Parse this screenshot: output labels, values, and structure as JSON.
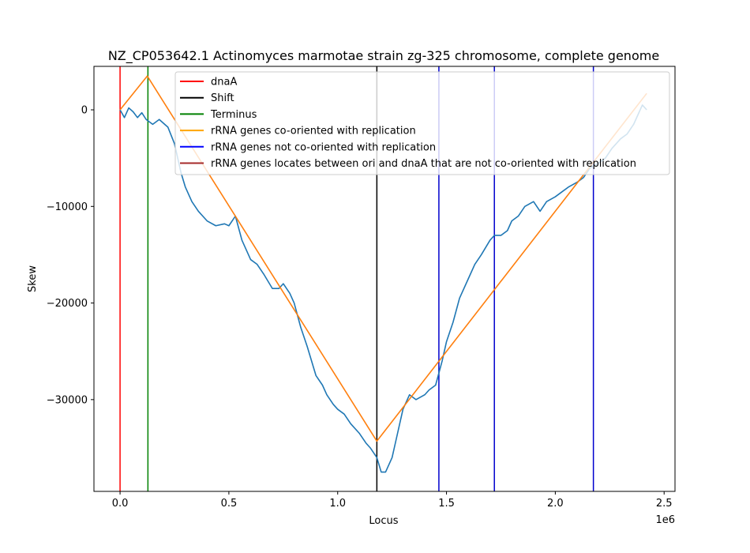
{
  "chart_data": {
    "type": "line",
    "title": "NZ_CP053642.1 Actinomyces marmotae strain zg-325 chromosome, complete genome",
    "xlabel": "Locus",
    "ylabel": "Skew",
    "x_offset_label": "1e6",
    "xlim": [
      -0.12,
      2.55
    ],
    "ylim": [
      -39500,
      4500
    ],
    "x_ticks": [
      {
        "value": 0.0,
        "label": "0.0"
      },
      {
        "value": 0.5,
        "label": "0.5"
      },
      {
        "value": 1.0,
        "label": "1.0"
      },
      {
        "value": 1.5,
        "label": "1.5"
      },
      {
        "value": 2.0,
        "label": "2.0"
      },
      {
        "value": 2.5,
        "label": "2.5"
      }
    ],
    "y_ticks": [
      {
        "value": 0,
        "label": "0"
      },
      {
        "value": -10000,
        "label": "−10000"
      },
      {
        "value": -20000,
        "label": "−20000"
      },
      {
        "value": -30000,
        "label": "−30000"
      }
    ],
    "grid": false,
    "legend_position": "top-right",
    "legend": [
      {
        "label": "dnaA",
        "color": "#ff0000"
      },
      {
        "label": "Shift",
        "color": "#000000"
      },
      {
        "label": "Terminus",
        "color": "#008000"
      },
      {
        "label": "rRNA genes co-oriented with replication",
        "color": "#ffa500"
      },
      {
        "label": "rRNA genes not co-oriented with replication",
        "color": "#0000ff"
      },
      {
        "label": "rRNA genes locates between ori and dnaA that are not co-oriented with replication",
        "color": "#a52a2a"
      }
    ],
    "vertical_lines": [
      {
        "x": 0.0,
        "color": "#ff0000"
      },
      {
        "x": 0.128,
        "color": "#008000"
      },
      {
        "x": 1.18,
        "color": "#000000"
      },
      {
        "x": 1.465,
        "color": "#0000cd"
      },
      {
        "x": 1.72,
        "color": "#0000cd"
      },
      {
        "x": 2.175,
        "color": "#0000cd"
      }
    ],
    "series": [
      {
        "color": "#1f77b4",
        "x": [
          0.0,
          0.02,
          0.04,
          0.06,
          0.08,
          0.1,
          0.12,
          0.15,
          0.18,
          0.22,
          0.25,
          0.28,
          0.3,
          0.33,
          0.36,
          0.4,
          0.44,
          0.48,
          0.5,
          0.53,
          0.56,
          0.6,
          0.63,
          0.66,
          0.7,
          0.73,
          0.75,
          0.78,
          0.8,
          0.83,
          0.86,
          0.9,
          0.93,
          0.95,
          0.98,
          1.0,
          1.03,
          1.06,
          1.1,
          1.13,
          1.15,
          1.18,
          1.2,
          1.22,
          1.25,
          1.27,
          1.3,
          1.33,
          1.36,
          1.4,
          1.42,
          1.45,
          1.48,
          1.5,
          1.53,
          1.56,
          1.6,
          1.63,
          1.66,
          1.7,
          1.72,
          1.75,
          1.78,
          1.8,
          1.83,
          1.86,
          1.9,
          1.93,
          1.96,
          2.0,
          2.03,
          2.06,
          2.1,
          2.13,
          2.16,
          2.2,
          2.23,
          2.26,
          2.3,
          2.33,
          2.36,
          2.38,
          2.4,
          2.42
        ],
        "y": [
          0,
          -800,
          200,
          -200,
          -800,
          -300,
          -1000,
          -1500,
          -1000,
          -1800,
          -3500,
          -6500,
          -8000,
          -9500,
          -10500,
          -11500,
          -12000,
          -11800,
          -12000,
          -11000,
          -13500,
          -15500,
          -16000,
          -17000,
          -18500,
          -18500,
          -18000,
          -19000,
          -20000,
          -22500,
          -24500,
          -27500,
          -28500,
          -29500,
          -30500,
          -31000,
          -31500,
          -32500,
          -33500,
          -34500,
          -35000,
          -36000,
          -37500,
          -37500,
          -36000,
          -34000,
          -31000,
          -29500,
          -30000,
          -29500,
          -29000,
          -28500,
          -26000,
          -24000,
          -22000,
          -19500,
          -17500,
          -16000,
          -15000,
          -13500,
          -13000,
          -13000,
          -12500,
          -11500,
          -11000,
          -10000,
          -9500,
          -10500,
          -9500,
          -9000,
          -8500,
          -8000,
          -7500,
          -7000,
          -6000,
          -5500,
          -5000,
          -4000,
          -3000,
          -2500,
          -1500,
          -500,
          500,
          0
        ]
      },
      {
        "color": "#ff7f0e",
        "x": [
          0.0,
          0.125,
          1.18,
          2.42
        ],
        "y": [
          0,
          3500,
          -34300,
          1700
        ]
      }
    ]
  }
}
